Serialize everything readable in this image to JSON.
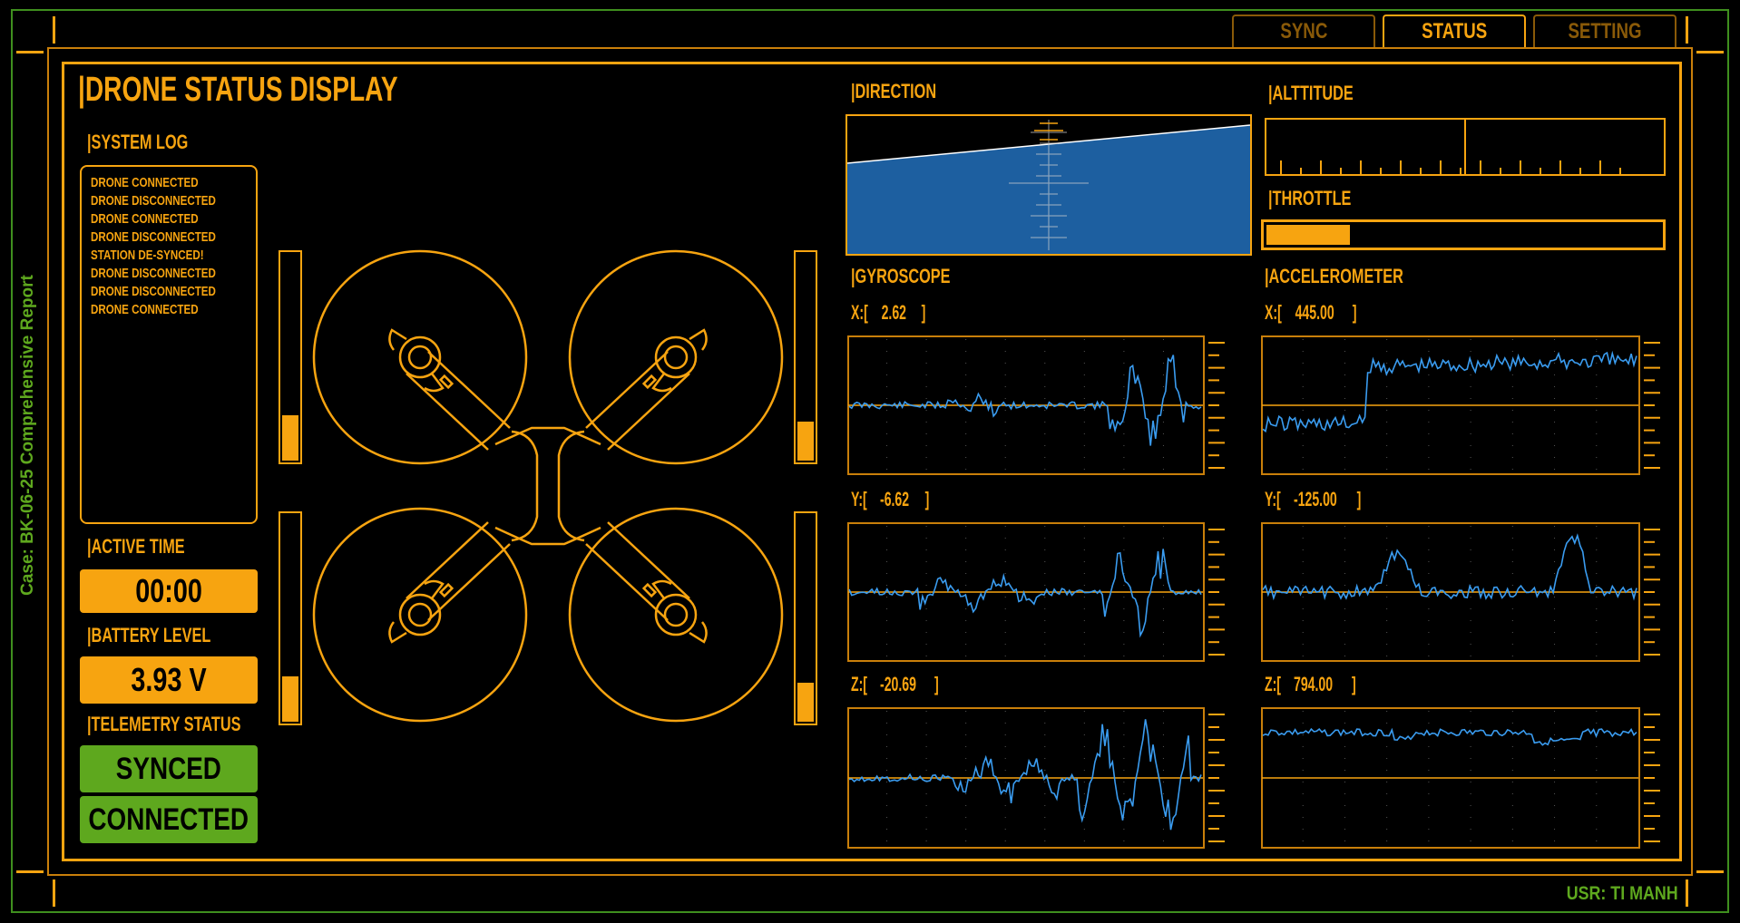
{
  "case_label": "Case: BK-06-25 Comprehensive Report",
  "user_label": "USR: TI MANH",
  "tabs": [
    {
      "label": "SYNC",
      "active": false
    },
    {
      "label": "STATUS",
      "active": true
    },
    {
      "label": "SETTING",
      "active": false
    }
  ],
  "title": "|DRONE STATUS DISPLAY",
  "system_log": {
    "heading": "|SYSTEM LOG",
    "entries": [
      "DRONE CONNECTED",
      "DRONE DISCONNECTED",
      "DRONE CONNECTED",
      "DRONE DISCONNECTED",
      "STATION DE-SYNCED!",
      "DRONE DISCONNECTED",
      "DRONE DISCONNECTED",
      "DRONE CONNECTED"
    ]
  },
  "active_time": {
    "heading": "|ACTIVE TIME",
    "value": "00:00"
  },
  "battery": {
    "heading": "|BATTERY LEVEL",
    "value": "3.93 V"
  },
  "telemetry": {
    "heading": "|TELEMETRY STATUS",
    "sync": "SYNCED",
    "connection": "CONNECTED"
  },
  "motors": [
    {
      "id": "motor-front-left",
      "level": 0.22
    },
    {
      "id": "motor-front-right",
      "level": 0.19
    },
    {
      "id": "motor-rear-left",
      "level": 0.22
    },
    {
      "id": "motor-rear-right",
      "level": 0.19
    }
  ],
  "direction": {
    "heading": "|DIRECTION"
  },
  "altitude": {
    "heading": "|ALTTITUDE"
  },
  "throttle": {
    "heading": "|THROTTLE",
    "level": 0.21
  },
  "gyroscope": {
    "heading": "|GYROSCOPE",
    "x": {
      "label": "X:[",
      "value": "2.62",
      "close": "]"
    },
    "y": {
      "label": "Y:[",
      "value": "-6.62",
      "close": "]"
    },
    "z": {
      "label": "Z:[",
      "value": "-20.69",
      "close": "]"
    }
  },
  "accelerometer": {
    "heading": "|ACCELEROMETER",
    "x": {
      "label": "X:[",
      "value": "445.00",
      "close": "]"
    },
    "y": {
      "label": "Y:[",
      "value": "-125.00",
      "close": "]"
    },
    "z": {
      "label": "Z:[",
      "value": "794.00",
      "close": "]"
    }
  },
  "colors": {
    "accent": "#f7a410",
    "green": "#5ea81e",
    "trace": "#3a9cf0",
    "horizon": "#1d5fa0"
  }
}
